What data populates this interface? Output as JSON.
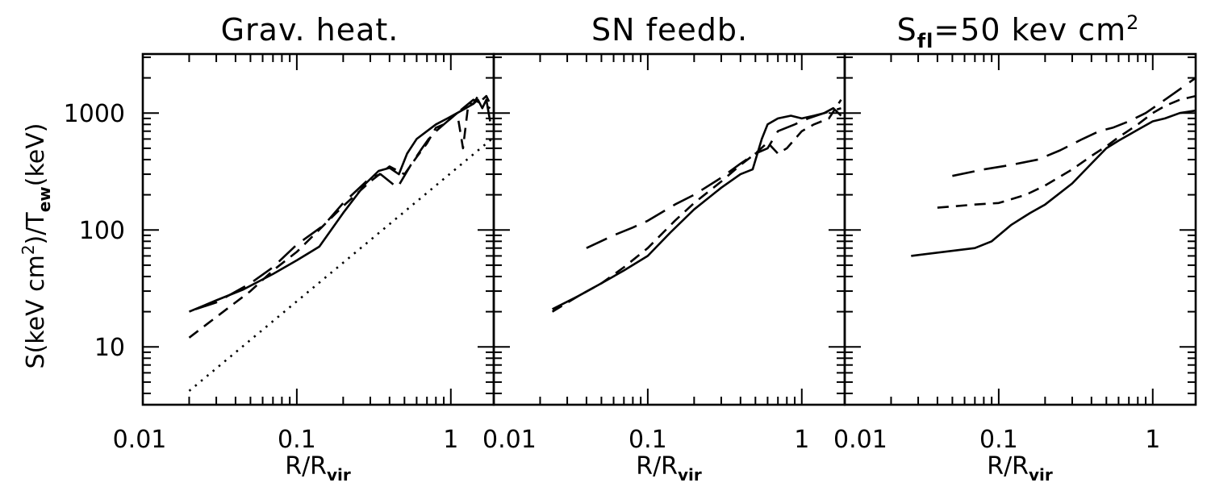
{
  "figure": {
    "ylabel_main": "S(keV cm",
    "ylabel_sup": "2",
    "ylabel_mid": ")/T",
    "ylabel_sub": "ew",
    "ylabel_end": "(keV)"
  },
  "chart_data": [
    {
      "type": "line",
      "title": "Grav. heat.",
      "xlabel": "R/R",
      "xlabel_sub": "vir",
      "xscale": "log",
      "yscale": "log",
      "xlim": [
        0.01,
        1.9
      ],
      "ylim": [
        3.2,
        3200
      ],
      "x_tick_labels": [
        "0.01",
        "0.1",
        "1"
      ],
      "y_tick_labels": [
        "10",
        "100",
        "1000"
      ],
      "series": [
        {
          "name": "solid",
          "style": "solid",
          "x": [
            0.02,
            0.03,
            0.045,
            0.07,
            0.1,
            0.14,
            0.2,
            0.28,
            0.34,
            0.4,
            0.46,
            0.52,
            0.6,
            0.7,
            0.8,
            0.95,
            1.1,
            1.25,
            1.4,
            1.5,
            1.6,
            1.7,
            1.8
          ],
          "y": [
            20,
            25,
            31,
            42,
            55,
            72,
            140,
            250,
            320,
            340,
            300,
            450,
            600,
            700,
            800,
            900,
            1000,
            1100,
            1200,
            1300,
            1100,
            1300,
            850
          ]
        },
        {
          "name": "short dashed",
          "style": "short-dash",
          "x": [
            0.02,
            0.03,
            0.05,
            0.07,
            0.1,
            0.15,
            0.2,
            0.3,
            0.4,
            0.5,
            0.6,
            0.7,
            0.8,
            0.9,
            1.0,
            1.1,
            1.2,
            1.3,
            1.4,
            1.5,
            1.6,
            1.7,
            1.8
          ],
          "y": [
            12,
            18,
            30,
            45,
            65,
            110,
            160,
            260,
            350,
            300,
            420,
            550,
            750,
            800,
            900,
            1000,
            500,
            1200,
            1200,
            1400,
            1300,
            1400,
            1200
          ]
        },
        {
          "name": "long dashed",
          "style": "long-dash",
          "x": [
            0.022,
            0.03,
            0.05,
            0.07,
            0.1,
            0.15,
            0.2,
            0.3,
            0.35,
            0.45,
            0.55,
            0.65,
            0.75,
            0.9,
            1.0,
            1.2,
            1.4,
            1.6,
            1.8
          ],
          "y": [
            21,
            24,
            35,
            48,
            75,
            110,
            170,
            280,
            300,
            230,
            360,
            500,
            650,
            800,
            900,
            1100,
            1300,
            1200,
            1100
          ]
        },
        {
          "name": "dotted",
          "style": "dotted",
          "x": [
            0.02,
            1.9
          ],
          "y": [
            4.2,
            620
          ]
        }
      ]
    },
    {
      "type": "line",
      "title": "SN feedb.",
      "xlabel": "R/R",
      "xlabel_sub": "vir",
      "xscale": "log",
      "yscale": "log",
      "xlim": [
        0.01,
        1.9
      ],
      "ylim": [
        3.2,
        3200
      ],
      "x_tick_labels": [
        "0.01",
        "0.1",
        "1"
      ],
      "y_tick_labels": [
        "10",
        "100",
        "1000"
      ],
      "series": [
        {
          "name": "solid",
          "style": "solid",
          "x": [
            0.024,
            0.035,
            0.05,
            0.07,
            0.1,
            0.14,
            0.2,
            0.3,
            0.4,
            0.48,
            0.55,
            0.6,
            0.7,
            0.85,
            1.0,
            1.2,
            1.4,
            1.6,
            1.8
          ],
          "y": [
            21,
            27,
            35,
            45,
            60,
            95,
            150,
            230,
            300,
            330,
            600,
            800,
            900,
            950,
            900,
            950,
            1000,
            1100,
            950
          ]
        },
        {
          "name": "short dashed",
          "style": "short-dash",
          "x": [
            0.024,
            0.035,
            0.05,
            0.07,
            0.1,
            0.15,
            0.2,
            0.3,
            0.4,
            0.5,
            0.6,
            0.7,
            0.8,
            1.0,
            1.2,
            1.5,
            1.8
          ],
          "y": [
            20,
            27,
            35,
            48,
            70,
            120,
            170,
            260,
            360,
            450,
            560,
            450,
            500,
            700,
            800,
            900,
            1300
          ]
        },
        {
          "name": "long dashed",
          "style": "long-dash",
          "x": [
            0.04,
            0.06,
            0.08,
            0.1,
            0.15,
            0.2,
            0.3,
            0.4,
            0.5,
            0.6,
            0.7,
            0.9,
            1.1,
            1.4,
            1.8
          ],
          "y": [
            70,
            90,
            105,
            120,
            165,
            200,
            280,
            370,
            450,
            500,
            700,
            800,
            900,
            1000,
            1100
          ]
        }
      ]
    },
    {
      "type": "line",
      "title": "S",
      "title_sub": "fl",
      "title_tail": "=50 kev cm",
      "title_sup": "2",
      "xlabel": "R/R",
      "xlabel_sub": "vir",
      "xscale": "log",
      "yscale": "log",
      "xlim": [
        0.01,
        1.9
      ],
      "ylim": [
        3.2,
        3200
      ],
      "x_tick_labels": [
        "0.01",
        "0.1",
        "1"
      ],
      "y_tick_labels": [
        "10",
        "100",
        "1000"
      ],
      "series": [
        {
          "name": "solid",
          "style": "solid",
          "x": [
            0.027,
            0.07,
            0.09,
            0.12,
            0.16,
            0.2,
            0.3,
            0.4,
            0.5,
            0.6,
            0.8,
            1.0,
            1.2,
            1.5,
            1.9
          ],
          "y": [
            60,
            70,
            80,
            110,
            140,
            165,
            250,
            370,
            500,
            580,
            720,
            850,
            900,
            1000,
            1050
          ]
        },
        {
          "name": "short dashed",
          "style": "short-dash",
          "x": [
            0.04,
            0.07,
            0.1,
            0.15,
            0.2,
            0.3,
            0.4,
            0.5,
            0.6,
            0.8,
            1.0,
            1.2,
            1.5,
            1.9
          ],
          "y": [
            155,
            165,
            170,
            200,
            240,
            330,
            430,
            520,
            620,
            800,
            1000,
            1150,
            1300,
            1400
          ]
        },
        {
          "name": "long dashed",
          "style": "long-dash",
          "x": [
            0.05,
            0.08,
            0.12,
            0.18,
            0.25,
            0.35,
            0.45,
            0.55,
            0.7,
            0.9,
            1.1,
            1.4,
            1.9
          ],
          "y": [
            290,
            330,
            360,
            400,
            480,
            600,
            700,
            750,
            850,
            1000,
            1200,
            1500,
            2000
          ]
        }
      ]
    }
  ]
}
